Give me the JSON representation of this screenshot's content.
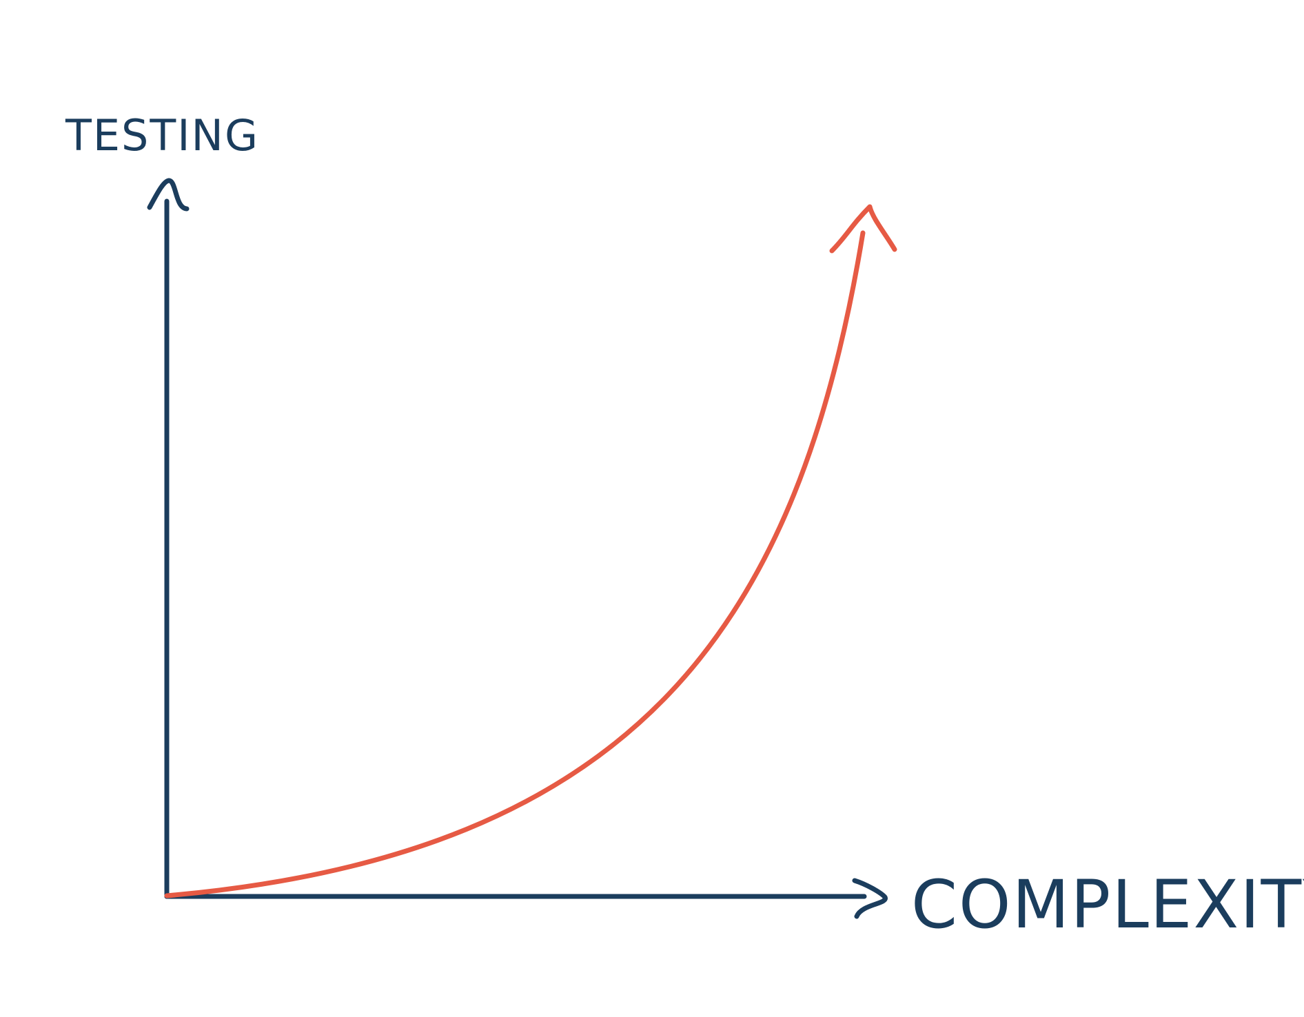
{
  "diagram": {
    "y_axis_label": "TESTING",
    "x_axis_label": "COMPLEXITY",
    "colors": {
      "axis": "#1b3d5d",
      "curve": "#e65a44",
      "background": "#ffffff"
    },
    "curve_shape": "exponential-growth",
    "icons": [
      "arrowhead-up-icon",
      "arrowhead-right-icon",
      "curve-arrowhead-icon"
    ]
  }
}
